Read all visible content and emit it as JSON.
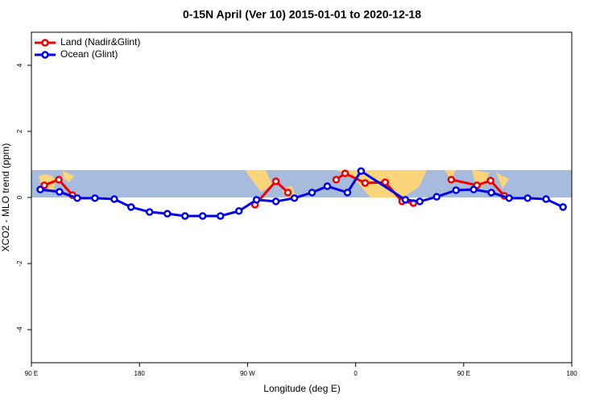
{
  "chart_data": {
    "type": "line",
    "title": "0-15N April (Ver 10)   2015-01-01 to 2020-12-18",
    "x_label": "Longitude (deg E)",
    "y_label": "XCO2 - MLO trend (ppm)",
    "xlim": [
      90,
      540
    ],
    "xticks": [
      {
        "value": 90,
        "label": "90 E"
      },
      {
        "value": 180,
        "label": "180"
      },
      {
        "value": 270,
        "label": "90 W"
      },
      {
        "value": 360,
        "label": "0"
      },
      {
        "value": 450,
        "label": "90 E"
      },
      {
        "value": 540,
        "label": "180"
      }
    ],
    "ylim": [
      -5,
      5
    ],
    "yticks": [
      -4,
      -2,
      0,
      2,
      4
    ],
    "legend": "top-left",
    "series": [
      {
        "name": "Land (Nadir&Glint)",
        "color": "#ee0000",
        "x": [
          100.7,
          112.8,
          124.2,
          null,
          276.2,
          293.6,
          303.6,
          null,
          343.8,
          351.2,
          367.9,
          384.6,
          398.7,
          408.1,
          null,
          439.6,
          461.0,
          472.4,
          483.8
        ],
        "values": [
          0.37,
          0.54,
          0.07,
          null,
          -0.22,
          0.49,
          0.15,
          null,
          0.54,
          0.73,
          0.44,
          0.46,
          -0.12,
          -0.17,
          null,
          0.54,
          0.37,
          0.51,
          0.05
        ]
      },
      {
        "name": "Ocean (Glint)",
        "color": "#0000ee",
        "x": [
          97.4,
          113.4,
          128.2,
          142.9,
          159.0,
          173.0,
          188.4,
          203.2,
          217.9,
          232.6,
          247.4,
          262.8,
          277.5,
          293.6,
          309.0,
          323.7,
          336.4,
          353.2,
          364.5,
          401.4,
          413.4,
          427.5,
          443.6,
          458.3,
          473.0,
          487.8,
          503.2,
          518.6,
          532.7
        ],
        "values": [
          0.24,
          0.17,
          -0.02,
          -0.02,
          -0.05,
          -0.29,
          -0.44,
          -0.49,
          -0.56,
          -0.56,
          -0.56,
          -0.41,
          -0.07,
          -0.12,
          -0.02,
          0.15,
          0.34,
          0.15,
          0.8,
          -0.07,
          -0.12,
          0.02,
          0.22,
          0.24,
          0.15,
          -0.02,
          -0.02,
          -0.05,
          -0.29
        ]
      }
    ]
  }
}
